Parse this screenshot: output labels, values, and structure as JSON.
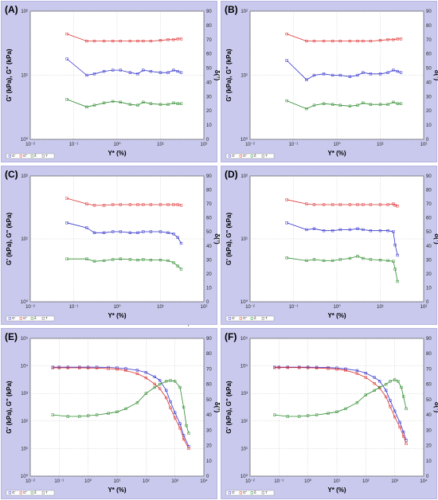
{
  "figure": {
    "stray_mark": "'"
  },
  "chart_data": [
    {
      "label": "(A)",
      "type": "line",
      "xlabel": "Y* (%)",
      "ylabel": "G' (kPa), G\" (kPa)",
      "y2label": "δ(°)",
      "xscale": "log",
      "xlim": [
        0.01,
        100
      ],
      "xticks": [
        "10⁻²",
        "10⁻¹",
        "10⁰",
        "10¹",
        "10²"
      ],
      "yscale": "log",
      "ylim": [
        1,
        100
      ],
      "yticks": [
        "10⁰",
        "10¹",
        "10²"
      ],
      "y2lim": [
        0,
        90
      ],
      "y2ticks": [
        "0",
        "10",
        "20",
        "30",
        "40",
        "50",
        "60",
        "70",
        "80",
        "90"
      ],
      "grid": true,
      "legend_placement": "bottom-left",
      "legend": [
        "G'",
        "G\"",
        "δ",
        "T"
      ],
      "colors": {
        "G_prime": "#3333cc",
        "G_double_prime": "#2e8b2e",
        "delta": "#dd3333"
      },
      "series": [
        {
          "axis": "left",
          "color": "#3333cc",
          "x": [
            0.07,
            0.2,
            0.3,
            0.5,
            0.8,
            1.2,
            2,
            3,
            4,
            6,
            10,
            15,
            20,
            25,
            30
          ],
          "y": [
            18,
            10,
            10.5,
            11.5,
            12,
            12,
            11,
            10.5,
            12,
            11.5,
            11,
            11,
            12,
            11.5,
            11
          ]
        },
        {
          "axis": "left",
          "color": "#2e8b2e",
          "x": [
            0.07,
            0.2,
            0.3,
            0.5,
            0.8,
            1.2,
            2,
            3,
            4,
            6,
            10,
            15,
            20,
            25,
            30
          ],
          "y": [
            4.2,
            3.2,
            3.4,
            3.7,
            3.9,
            3.8,
            3.5,
            3.4,
            3.8,
            3.6,
            3.5,
            3.5,
            3.7,
            3.6,
            3.6
          ]
        },
        {
          "axis": "right",
          "color": "#dd3333",
          "x": [
            0.07,
            0.2,
            0.3,
            0.5,
            0.8,
            1.2,
            2,
            3,
            4,
            6,
            10,
            15,
            20,
            25,
            30
          ],
          "y": [
            74,
            69,
            69,
            69,
            69,
            69,
            69,
            69,
            69,
            69,
            69.5,
            70,
            70,
            70.5,
            70.5
          ]
        }
      ]
    },
    {
      "label": "(B)",
      "type": "line",
      "xlabel": "Y* (%)",
      "ylabel": "G' (kPa), G\" (kPa)",
      "y2label": "δ(°)",
      "xscale": "log",
      "xlim": [
        0.01,
        100
      ],
      "xticks": [
        "10⁻²",
        "10⁻¹",
        "10⁰",
        "10¹",
        "10²"
      ],
      "yscale": "log",
      "ylim": [
        1,
        100
      ],
      "yticks": [
        "10⁰",
        "10¹",
        "10²"
      ],
      "y2lim": [
        0,
        90
      ],
      "y2ticks": [
        "0",
        "10",
        "20",
        "30",
        "40",
        "50",
        "60",
        "70",
        "80",
        "90"
      ],
      "grid": true,
      "legend_placement": "bottom-left",
      "legend": [
        "G'",
        "G\"",
        "δ",
        "T"
      ],
      "colors": {
        "G_prime": "#3333cc",
        "G_double_prime": "#2e8b2e",
        "delta": "#dd3333"
      },
      "series": [
        {
          "axis": "left",
          "color": "#3333cc",
          "x": [
            0.07,
            0.2,
            0.3,
            0.5,
            0.8,
            1.2,
            2,
            3,
            4,
            6,
            10,
            15,
            20,
            25,
            30
          ],
          "y": [
            17,
            8.5,
            10,
            10.5,
            10,
            10,
            9.5,
            10,
            11,
            10.5,
            10.5,
            11,
            12,
            11.5,
            11
          ]
        },
        {
          "axis": "left",
          "color": "#2e8b2e",
          "x": [
            0.07,
            0.2,
            0.3,
            0.5,
            0.8,
            1.2,
            2,
            3,
            4,
            6,
            10,
            15,
            20,
            25,
            30
          ],
          "y": [
            4,
            3,
            3.4,
            3.6,
            3.5,
            3.4,
            3.3,
            3.4,
            3.7,
            3.5,
            3.5,
            3.5,
            3.8,
            3.6,
            3.6
          ]
        },
        {
          "axis": "right",
          "color": "#dd3333",
          "x": [
            0.07,
            0.2,
            0.3,
            0.5,
            0.8,
            1.2,
            2,
            3,
            4,
            6,
            10,
            15,
            20,
            25,
            30
          ],
          "y": [
            74,
            69,
            69,
            69,
            69,
            69,
            69,
            69,
            69,
            69,
            69.5,
            70,
            70,
            70.5,
            70.5
          ]
        }
      ]
    },
    {
      "label": "(C)",
      "type": "line",
      "xlabel": "Y* (%)",
      "ylabel": "G' (kPa), G\" (kPa)",
      "y2label": "δ(°)",
      "xscale": "log",
      "xlim": [
        0.01,
        100
      ],
      "xticks": [
        "10⁻²",
        "10⁻¹",
        "10⁰",
        "10¹",
        "10²"
      ],
      "yscale": "log",
      "ylim": [
        1,
        100
      ],
      "yticks": [
        "10⁰",
        "10¹",
        "10²"
      ],
      "y2lim": [
        0,
        90
      ],
      "y2ticks": [
        "0",
        "10",
        "20",
        "30",
        "40",
        "50",
        "60",
        "70",
        "80",
        "90"
      ],
      "grid": true,
      "legend_placement": "bottom-left",
      "legend": [
        "G'",
        "G\"",
        "δ",
        "T"
      ],
      "colors": {
        "G_prime": "#3333cc",
        "G_double_prime": "#2e8b2e",
        "delta": "#dd3333"
      },
      "series": [
        {
          "axis": "left",
          "color": "#3333cc",
          "x": [
            0.07,
            0.2,
            0.3,
            0.5,
            0.8,
            1.2,
            2,
            3,
            4,
            6,
            10,
            15,
            20,
            25,
            30
          ],
          "y": [
            18,
            15,
            12.5,
            12.5,
            13,
            13,
            12.5,
            12.5,
            13,
            13,
            13,
            12.5,
            12,
            10.5,
            8.5
          ]
        },
        {
          "axis": "left",
          "color": "#2e8b2e",
          "x": [
            0.07,
            0.2,
            0.3,
            0.5,
            0.8,
            1.2,
            2,
            3,
            4,
            6,
            10,
            15,
            20,
            25,
            30
          ],
          "y": [
            4.8,
            4.8,
            4.4,
            4.5,
            4.7,
            4.8,
            4.7,
            4.6,
            4.7,
            4.6,
            4.6,
            4.5,
            4.2,
            3.7,
            3.3
          ]
        },
        {
          "axis": "right",
          "color": "#dd3333",
          "x": [
            0.07,
            0.2,
            0.3,
            0.5,
            0.8,
            1.2,
            2,
            3,
            4,
            6,
            10,
            15,
            20,
            25,
            30
          ],
          "y": [
            74,
            70,
            69,
            69,
            69.5,
            69.5,
            69.5,
            69.5,
            69.5,
            69.5,
            69.5,
            69.5,
            69.5,
            69.5,
            69
          ]
        }
      ]
    },
    {
      "label": "(D)",
      "type": "line",
      "xlabel": "Y* (%)",
      "ylabel": "G' (kPa), G\" (kPa)",
      "y2label": "δ(°)",
      "xscale": "log",
      "xlim": [
        0.01,
        100
      ],
      "xticks": [
        "10⁻²",
        "10⁻¹",
        "10⁰",
        "10¹",
        "10²"
      ],
      "yscale": "log",
      "ylim": [
        1,
        100
      ],
      "yticks": [
        "10⁰",
        "10¹",
        "10²"
      ],
      "y2lim": [
        0,
        90
      ],
      "y2ticks": [
        "0",
        "10",
        "20",
        "30",
        "40",
        "50",
        "60",
        "70",
        "80",
        "90"
      ],
      "grid": true,
      "legend_placement": "bottom-left",
      "legend": [
        "G'",
        "G\"",
        "δ",
        "T"
      ],
      "colors": {
        "G_prime": "#3333cc",
        "G_double_prime": "#2e8b2e",
        "delta": "#dd3333"
      },
      "series": [
        {
          "axis": "left",
          "color": "#3333cc",
          "x": [
            0.07,
            0.2,
            0.3,
            0.5,
            0.8,
            1.2,
            2,
            3,
            4,
            6,
            10,
            15,
            20,
            22,
            25
          ],
          "y": [
            18,
            14,
            14.5,
            13.5,
            13.5,
            14,
            14,
            14.5,
            14,
            13.5,
            13.5,
            13.5,
            13,
            8,
            5.5
          ]
        },
        {
          "axis": "left",
          "color": "#2e8b2e",
          "x": [
            0.07,
            0.2,
            0.3,
            0.5,
            0.8,
            1.2,
            2,
            3,
            4,
            6,
            10,
            15,
            20,
            22,
            25
          ],
          "y": [
            5,
            4.5,
            4.7,
            4.5,
            4.5,
            4.7,
            4.9,
            5.3,
            4.9,
            4.7,
            4.6,
            4.5,
            4.4,
            3.3,
            2.1
          ]
        },
        {
          "axis": "right",
          "color": "#dd3333",
          "x": [
            0.07,
            0.2,
            0.3,
            0.5,
            0.8,
            1.2,
            2,
            3,
            4,
            6,
            10,
            15,
            20,
            22,
            25
          ],
          "y": [
            73,
            70,
            69.5,
            69.5,
            69.5,
            69.5,
            69.5,
            69.5,
            69.5,
            69.5,
            69.5,
            69.5,
            70,
            69,
            68.5
          ]
        }
      ]
    },
    {
      "label": "(E)",
      "type": "line",
      "xlabel": "Y* (%)",
      "ylabel": "G' (kPa), G\" (kPa)",
      "y2label": "δ(°)",
      "xscale": "log",
      "xlim": [
        0.01,
        10000
      ],
      "xticks": [
        "10⁻²",
        "10⁻¹",
        "10⁰",
        "10¹",
        "10²",
        "10³",
        "10⁴"
      ],
      "yscale": "log",
      "ylim": [
        1,
        100000
      ],
      "yticks": [
        "10⁰",
        "10¹",
        "10²",
        "10³",
        "10⁴",
        "10⁵"
      ],
      "y2lim": [
        0,
        90
      ],
      "y2ticks": [
        "0",
        "10",
        "20",
        "30",
        "40",
        "50",
        "60",
        "70",
        "80",
        "90"
      ],
      "grid": true,
      "legend_placement": "bottom-left",
      "legend": [
        "G'",
        "G\"",
        "δ",
        "T"
      ],
      "colors": {
        "G_prime": "#3333cc",
        "G_double_prime": "#2e8b2e",
        "delta": "#dd3333"
      },
      "series": [
        {
          "axis": "left",
          "color": "#3333cc",
          "x": [
            0.06,
            0.1,
            0.2,
            0.5,
            1,
            2,
            5,
            10,
            20,
            50,
            100,
            200,
            300,
            500,
            700,
            1000,
            1500,
            2000,
            3000
          ],
          "y": [
            9000,
            9000,
            9000,
            9000,
            9000,
            9000,
            8800,
            8500,
            8000,
            7000,
            5800,
            4000,
            3000,
            1300,
            500,
            200,
            80,
            30,
            12
          ]
        },
        {
          "axis": "left",
          "color": "#dd3333",
          "x": [
            0.06,
            0.1,
            0.2,
            0.5,
            1,
            2,
            5,
            10,
            20,
            50,
            100,
            200,
            300,
            500,
            700,
            1000,
            1500,
            2000,
            3000
          ],
          "y": [
            8500,
            8500,
            8500,
            8500,
            8400,
            8300,
            8000,
            7600,
            6800,
            5200,
            3700,
            2200,
            1500,
            700,
            300,
            130,
            55,
            22,
            10
          ]
        },
        {
          "axis": "right",
          "color": "#2e8b2e",
          "x": [
            0.06,
            0.2,
            0.5,
            1,
            2,
            5,
            10,
            20,
            50,
            100,
            200,
            300,
            500,
            700,
            1000,
            1500,
            2000,
            2500,
            3000
          ],
          "y": [
            40,
            39,
            39,
            39.5,
            40,
            41,
            42,
            44,
            48,
            54,
            58,
            60,
            62,
            62.5,
            62,
            58,
            45,
            33,
            28
          ]
        }
      ]
    },
    {
      "label": "(F)",
      "type": "line",
      "xlabel": "Y* (%)",
      "ylabel": "G' (kPa), G\" (kPa)",
      "y2label": "δ(°)",
      "xscale": "log",
      "xlim": [
        0.01,
        10000
      ],
      "xticks": [
        "10⁻²",
        "10⁻¹",
        "10⁰",
        "10¹",
        "10²",
        "10³",
        "10⁴"
      ],
      "yscale": "log",
      "ylim": [
        1,
        100000
      ],
      "yticks": [
        "10⁰",
        "10¹",
        "10²",
        "10³",
        "10⁴",
        "10⁵"
      ],
      "y2lim": [
        0,
        90
      ],
      "y2ticks": [
        "0",
        "10",
        "20",
        "30",
        "40",
        "50",
        "60",
        "70",
        "80",
        "90"
      ],
      "grid": true,
      "legend_placement": "bottom-left",
      "legend": [
        "G'",
        "G\"",
        "δ",
        "T"
      ],
      "colors": {
        "G_prime": "#3333cc",
        "G_double_prime": "#2e8b2e",
        "delta": "#dd3333"
      },
      "series": [
        {
          "axis": "left",
          "color": "#3333cc",
          "x": [
            0.07,
            0.1,
            0.2,
            0.5,
            1,
            2,
            5,
            10,
            20,
            50,
            100,
            200,
            300,
            500,
            700,
            1000,
            1500,
            2000,
            2500
          ],
          "y": [
            9000,
            9000,
            9000,
            9000,
            9000,
            8900,
            8700,
            8400,
            7800,
            6800,
            5500,
            3800,
            2800,
            1300,
            550,
            230,
            90,
            40,
            20
          ]
        },
        {
          "axis": "left",
          "color": "#dd3333",
          "x": [
            0.07,
            0.1,
            0.2,
            0.5,
            1,
            2,
            5,
            10,
            20,
            50,
            100,
            200,
            300,
            500,
            700,
            1000,
            1500,
            2000,
            2500
          ],
          "y": [
            8700,
            8700,
            8700,
            8700,
            8600,
            8400,
            8100,
            7600,
            6900,
            5300,
            3800,
            2300,
            1600,
            750,
            330,
            140,
            60,
            28,
            15
          ]
        },
        {
          "axis": "right",
          "color": "#2e8b2e",
          "x": [
            0.07,
            0.2,
            0.5,
            1,
            2,
            5,
            10,
            20,
            50,
            100,
            200,
            300,
            500,
            700,
            1000,
            1300,
            1700,
            2000,
            2500
          ],
          "y": [
            40,
            39,
            39,
            39.5,
            40,
            41,
            42,
            44,
            48,
            53,
            56,
            58,
            60,
            62,
            63,
            62,
            58,
            52,
            44
          ]
        }
      ]
    }
  ]
}
